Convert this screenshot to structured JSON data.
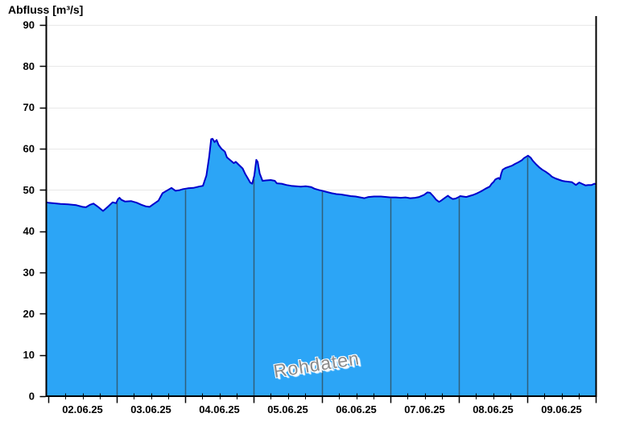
{
  "title": "Abfluss [m³/s]",
  "watermark": "Rohdaten",
  "colors": {
    "background": "#FFFFFF",
    "fill": "#2CA5F6",
    "stroke": "#0000CC",
    "day_line": "#305F7A",
    "grid": "#E8E8E8",
    "axis": "#000000",
    "tick": "#000000",
    "watermark_text": "#8B8B8B"
  },
  "chart_data": {
    "type": "area",
    "title": "Abfluss [m³/s]",
    "ylabel": "Abfluss [m³/s]",
    "xlabel": "",
    "ylim": [
      0,
      90
    ],
    "y_ticks": [
      0,
      10,
      20,
      30,
      40,
      50,
      60,
      70,
      80,
      90
    ],
    "x_tick_labels": [
      "02.06.25",
      "03.06.25",
      "04.06.25",
      "05.06.25",
      "06.06.25",
      "07.06.25",
      "08.06.25",
      "09.06.25"
    ],
    "x_unit": "days since 02.06.25 00:00",
    "x_range_days": [
      -0.035,
      8.0
    ],
    "minor_ticks_per_day": 4,
    "grid": true,
    "legend": "none",
    "watermark": "Rohdaten",
    "series": [
      {
        "name": "Abfluss",
        "points": [
          [
            -0.035,
            47.0
          ],
          [
            0.0,
            46.9
          ],
          [
            0.06,
            46.8
          ],
          [
            0.18,
            46.6
          ],
          [
            0.29,
            46.5
          ],
          [
            0.41,
            46.3
          ],
          [
            0.5,
            45.9
          ],
          [
            0.55,
            45.8
          ],
          [
            0.61,
            46.4
          ],
          [
            0.66,
            46.7
          ],
          [
            0.72,
            46.0
          ],
          [
            0.8,
            44.9
          ],
          [
            0.87,
            45.9
          ],
          [
            0.94,
            47.0
          ],
          [
            0.99,
            46.8
          ],
          [
            1.02,
            47.8
          ],
          [
            1.04,
            48.1
          ],
          [
            1.07,
            47.6
          ],
          [
            1.12,
            47.2
          ],
          [
            1.21,
            47.3
          ],
          [
            1.29,
            46.9
          ],
          [
            1.36,
            46.4
          ],
          [
            1.43,
            46.0
          ],
          [
            1.48,
            45.9
          ],
          [
            1.54,
            46.6
          ],
          [
            1.61,
            47.4
          ],
          [
            1.67,
            49.2
          ],
          [
            1.74,
            49.9
          ],
          [
            1.8,
            50.5
          ],
          [
            1.86,
            49.8
          ],
          [
            1.91,
            49.9
          ],
          [
            1.97,
            50.2
          ],
          [
            2.04,
            50.4
          ],
          [
            2.12,
            50.5
          ],
          [
            2.2,
            50.8
          ],
          [
            2.26,
            51.0
          ],
          [
            2.31,
            53.5
          ],
          [
            2.35,
            58.0
          ],
          [
            2.38,
            62.3
          ],
          [
            2.4,
            62.4
          ],
          [
            2.43,
            61.6
          ],
          [
            2.46,
            62.1
          ],
          [
            2.49,
            60.9
          ],
          [
            2.53,
            60.0
          ],
          [
            2.58,
            59.3
          ],
          [
            2.61,
            57.9
          ],
          [
            2.66,
            57.2
          ],
          [
            2.71,
            56.5
          ],
          [
            2.74,
            56.8
          ],
          [
            2.79,
            56.0
          ],
          [
            2.84,
            55.2
          ],
          [
            2.88,
            53.8
          ],
          [
            2.92,
            52.7
          ],
          [
            2.95,
            51.8
          ],
          [
            2.98,
            51.5
          ],
          [
            3.01,
            53.5
          ],
          [
            3.04,
            57.3
          ],
          [
            3.06,
            56.8
          ],
          [
            3.09,
            54.0
          ],
          [
            3.13,
            52.2
          ],
          [
            3.18,
            52.3
          ],
          [
            3.25,
            52.4
          ],
          [
            3.31,
            52.2
          ],
          [
            3.34,
            51.6
          ],
          [
            3.41,
            51.5
          ],
          [
            3.48,
            51.2
          ],
          [
            3.55,
            51.0
          ],
          [
            3.62,
            50.9
          ],
          [
            3.69,
            50.8
          ],
          [
            3.76,
            50.9
          ],
          [
            3.84,
            50.7
          ],
          [
            3.89,
            50.3
          ],
          [
            3.95,
            50.0
          ],
          [
            4.0,
            49.8
          ],
          [
            4.07,
            49.5
          ],
          [
            4.14,
            49.2
          ],
          [
            4.21,
            49.0
          ],
          [
            4.28,
            48.9
          ],
          [
            4.35,
            48.7
          ],
          [
            4.42,
            48.5
          ],
          [
            4.49,
            48.4
          ],
          [
            4.56,
            48.2
          ],
          [
            4.62,
            48.0
          ],
          [
            4.68,
            48.3
          ],
          [
            4.76,
            48.4
          ],
          [
            4.86,
            48.4
          ],
          [
            4.94,
            48.3
          ],
          [
            5.0,
            48.2
          ],
          [
            5.08,
            48.2
          ],
          [
            5.15,
            48.1
          ],
          [
            5.22,
            48.2
          ],
          [
            5.29,
            48.0
          ],
          [
            5.36,
            48.1
          ],
          [
            5.42,
            48.3
          ],
          [
            5.49,
            48.8
          ],
          [
            5.54,
            49.4
          ],
          [
            5.58,
            49.3
          ],
          [
            5.62,
            48.6
          ],
          [
            5.67,
            47.6
          ],
          [
            5.71,
            47.1
          ],
          [
            5.74,
            47.4
          ],
          [
            5.79,
            48.0
          ],
          [
            5.84,
            48.6
          ],
          [
            5.87,
            48.2
          ],
          [
            5.91,
            47.8
          ],
          [
            5.95,
            47.9
          ],
          [
            6.0,
            48.3
          ],
          [
            6.02,
            48.5
          ],
          [
            6.06,
            48.4
          ],
          [
            6.11,
            48.3
          ],
          [
            6.15,
            48.5
          ],
          [
            6.21,
            48.8
          ],
          [
            6.27,
            49.2
          ],
          [
            6.33,
            49.7
          ],
          [
            6.39,
            50.3
          ],
          [
            6.45,
            50.8
          ],
          [
            6.48,
            51.5
          ],
          [
            6.51,
            52.0
          ],
          [
            6.53,
            52.5
          ],
          [
            6.55,
            52.7
          ],
          [
            6.58,
            52.9
          ],
          [
            6.6,
            52.6
          ],
          [
            6.62,
            54.0
          ],
          [
            6.64,
            54.9
          ],
          [
            6.68,
            55.3
          ],
          [
            6.73,
            55.6
          ],
          [
            6.78,
            55.9
          ],
          [
            6.82,
            56.3
          ],
          [
            6.87,
            56.7
          ],
          [
            6.92,
            57.2
          ],
          [
            6.95,
            57.7
          ],
          [
            6.99,
            58.1
          ],
          [
            7.01,
            58.3
          ],
          [
            7.05,
            57.8
          ],
          [
            7.08,
            57.1
          ],
          [
            7.13,
            56.2
          ],
          [
            7.18,
            55.4
          ],
          [
            7.22,
            54.9
          ],
          [
            7.27,
            54.4
          ],
          [
            7.32,
            53.8
          ],
          [
            7.36,
            53.2
          ],
          [
            7.41,
            52.8
          ],
          [
            7.46,
            52.5
          ],
          [
            7.51,
            52.2
          ],
          [
            7.55,
            52.1
          ],
          [
            7.6,
            52.0
          ],
          [
            7.65,
            51.9
          ],
          [
            7.71,
            51.2
          ],
          [
            7.76,
            51.8
          ],
          [
            7.81,
            51.4
          ],
          [
            7.85,
            51.1
          ],
          [
            7.89,
            51.2
          ],
          [
            7.94,
            51.2
          ],
          [
            7.98,
            51.5
          ],
          [
            8.0,
            51.4
          ]
        ]
      }
    ]
  }
}
